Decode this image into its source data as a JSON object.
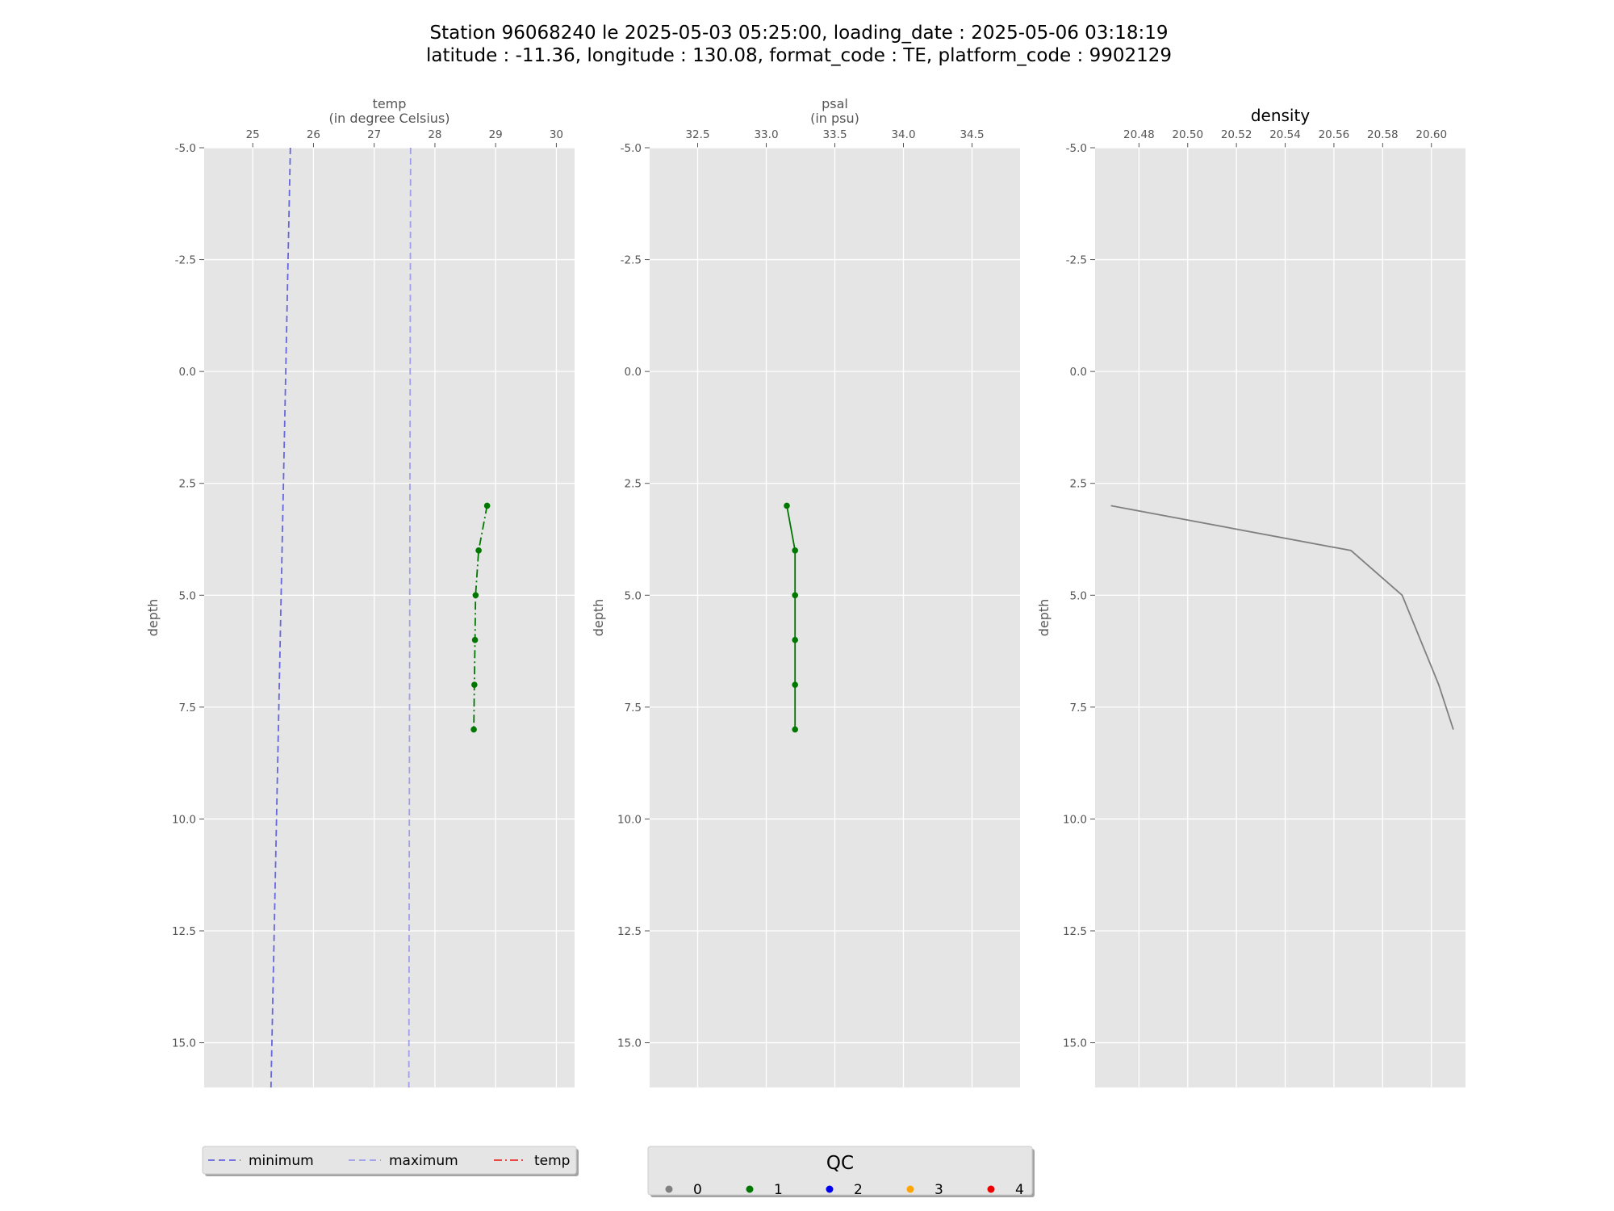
{
  "figure": {
    "title_line1": "Station 96068240 le 2025-05-03 05:25:00, loading_date : 2025-05-06 03:18:19",
    "title_line2": "latitude : -11.36, longitude : 130.08, format_code : TE, platform_code : 9902129"
  },
  "chart_data": [
    {
      "type": "line",
      "name": "temp",
      "xlabel_line1": "temp",
      "xlabel_line2": "(in degree Celsius)",
      "ylabel": "depth",
      "xlim": [
        24.2,
        30.3
      ],
      "ylim": [
        16.0,
        -5.0
      ],
      "xticks": [
        25,
        26,
        27,
        28,
        29,
        30
      ],
      "yticks": [
        -5.0,
        -2.5,
        0.0,
        2.5,
        5.0,
        7.5,
        10.0,
        12.5,
        15.0
      ],
      "grid": true,
      "series": [
        {
          "name": "minimum",
          "style": "dashed",
          "color": "#6666dd",
          "points": [
            [
              25.62,
              -5.0
            ],
            [
              25.3,
              16.0
            ]
          ]
        },
        {
          "name": "maximum",
          "style": "dashed",
          "color": "#a0a0e8",
          "points": [
            [
              27.6,
              -5.0
            ],
            [
              27.57,
              16.0
            ]
          ]
        },
        {
          "name": "temp",
          "style": "dashdot",
          "color": "#007700",
          "markers": true,
          "qc": 1,
          "points": [
            [
              28.86,
              3.0
            ],
            [
              28.72,
              4.0
            ],
            [
              28.67,
              5.0
            ],
            [
              28.66,
              6.0
            ],
            [
              28.65,
              7.0
            ],
            [
              28.64,
              8.0
            ]
          ]
        }
      ]
    },
    {
      "type": "line",
      "name": "psal",
      "xlabel_line1": "psal",
      "xlabel_line2": "(in psu)",
      "ylabel": "depth",
      "xlim": [
        32.15,
        34.85
      ],
      "ylim": [
        16.0,
        -5.0
      ],
      "xticks": [
        32.5,
        33.0,
        33.5,
        34.0,
        34.5
      ],
      "yticks": [
        -5.0,
        -2.5,
        0.0,
        2.5,
        5.0,
        7.5,
        10.0,
        12.5,
        15.0
      ],
      "grid": true,
      "series": [
        {
          "name": "psal",
          "style": "solid",
          "color": "#007700",
          "markers": true,
          "qc": 1,
          "points": [
            [
              33.15,
              3.0
            ],
            [
              33.21,
              4.0
            ],
            [
              33.21,
              5.0
            ],
            [
              33.21,
              6.0
            ],
            [
              33.21,
              7.0
            ],
            [
              33.21,
              8.0
            ]
          ]
        }
      ]
    },
    {
      "type": "line",
      "name": "density",
      "title": "density",
      "ylabel": "depth",
      "xlim": [
        20.462,
        20.614
      ],
      "ylim": [
        16.0,
        -5.0
      ],
      "xticks": [
        20.48,
        20.5,
        20.52,
        20.54,
        20.56,
        20.58,
        20.6
      ],
      "yticks": [
        -5.0,
        -2.5,
        0.0,
        2.5,
        5.0,
        7.5,
        10.0,
        12.5,
        15.0
      ],
      "grid": true,
      "series": [
        {
          "name": "density",
          "style": "solid",
          "color": "#808080",
          "markers": false,
          "points": [
            [
              20.4685,
              3.0
            ],
            [
              20.567,
              4.0
            ],
            [
              20.588,
              5.0
            ],
            [
              20.603,
              7.0
            ],
            [
              20.609,
              8.0
            ]
          ]
        }
      ]
    }
  ],
  "legend_lines": {
    "placement": "bottom-left",
    "items": [
      {
        "label": "minimum",
        "color": "#6666dd",
        "style": "dashed"
      },
      {
        "label": "maximum",
        "color": "#a0a0e8",
        "style": "dashed"
      },
      {
        "label": "temp",
        "color": "#e8352a",
        "style": "dashdot"
      }
    ]
  },
  "legend_qc": {
    "title": "QC",
    "placement": "bottom-center",
    "items": [
      {
        "label": "0",
        "color": "#808080"
      },
      {
        "label": "1",
        "color": "#007700"
      },
      {
        "label": "2",
        "color": "#0000ee"
      },
      {
        "label": "3",
        "color": "#ffa500"
      },
      {
        "label": "4",
        "color": "#ee0000"
      }
    ]
  }
}
